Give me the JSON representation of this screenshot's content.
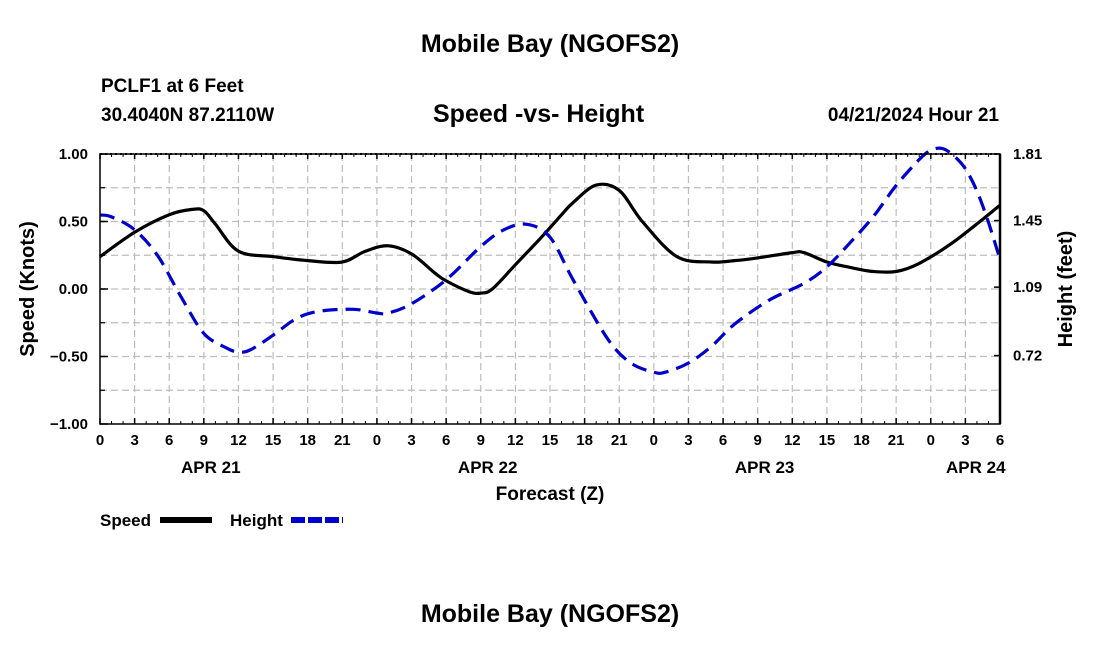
{
  "page_title": "Mobile Bay (NGOFS2)",
  "station": "PCLF1 at 6 Feet",
  "coordinates": "30.4040N  87.2110W",
  "datetime": "04/21/2024 Hour 21",
  "footer_title": "Mobile Bay (NGOFS2)",
  "colors": {
    "speed": "#000000",
    "height": "#0000cc",
    "grid": "#bdbdbd"
  },
  "chart_data": {
    "type": "line",
    "title": "Speed -vs- Height",
    "xlabel": "Forecast (Z)",
    "ylabel": "Speed (Knots)",
    "y2label": "Height (feet)",
    "xlim": [
      0,
      78
    ],
    "ylim": [
      -1.0,
      1.0
    ],
    "y2lim": [
      0.35,
      1.81
    ],
    "x_ticks": [
      0,
      3,
      6,
      9,
      12,
      15,
      18,
      21,
      24,
      27,
      30,
      33,
      36,
      39,
      42,
      45,
      48,
      51,
      54,
      57,
      60,
      63,
      66,
      69,
      72,
      75,
      78
    ],
    "x_tick_labels": [
      "0",
      "3",
      "6",
      "9",
      "12",
      "15",
      "18",
      "21",
      "0",
      "3",
      "6",
      "9",
      "12",
      "15",
      "18",
      "21",
      "0",
      "3",
      "6",
      "9",
      "12",
      "15",
      "18",
      "21",
      "0",
      "3",
      "6"
    ],
    "y_ticks": [
      1.0,
      0.5,
      0.0,
      -0.5,
      -1.0
    ],
    "y_tick_labels": [
      "1.00",
      "0.50",
      "0.00",
      "−0.50",
      "−1.00"
    ],
    "y2_ticks": [
      1.81,
      1.45,
      1.09,
      0.72
    ],
    "y2_tick_labels": [
      "1.81",
      "1.45",
      "1.09",
      "0.72"
    ],
    "date_labels": [
      {
        "x": 9.6,
        "label": "APR 21"
      },
      {
        "x": 33.6,
        "label": "APR 22"
      },
      {
        "x": 57.6,
        "label": "APR 23"
      },
      {
        "x": 75.9,
        "label": "APR 24"
      }
    ],
    "series": [
      {
        "name": "Speed",
        "axis": "left",
        "style": "solid",
        "x": [
          0,
          3,
          6,
          8,
          9,
          10,
          12,
          15,
          18,
          21,
          23,
          25,
          27,
          29,
          30,
          32,
          33,
          34,
          36,
          38,
          40,
          41,
          43,
          45,
          47,
          50,
          53,
          55,
          57,
          60,
          61,
          63,
          65,
          67,
          69,
          71,
          74,
          78
        ],
        "y": [
          0.24,
          0.42,
          0.55,
          0.59,
          0.58,
          0.48,
          0.28,
          0.24,
          0.21,
          0.2,
          0.28,
          0.32,
          0.26,
          0.12,
          0.06,
          -0.02,
          -0.03,
          0.0,
          0.18,
          0.36,
          0.55,
          0.64,
          0.77,
          0.73,
          0.5,
          0.24,
          0.2,
          0.21,
          0.23,
          0.27,
          0.27,
          0.2,
          0.16,
          0.13,
          0.13,
          0.19,
          0.35,
          0.62
        ]
      },
      {
        "name": "Height",
        "axis": "right",
        "style": "dashed",
        "x": [
          0,
          1,
          3,
          5,
          7,
          9,
          11,
          12,
          13,
          15,
          17,
          19,
          22,
          24,
          25,
          27,
          30,
          33,
          35,
          37,
          39,
          41,
          44,
          46,
          48,
          49,
          51,
          53,
          55,
          58,
          61,
          63,
          65,
          67,
          69,
          71,
          72,
          73,
          74,
          75,
          76,
          77,
          78
        ],
        "y": [
          1.48,
          1.47,
          1.4,
          1.26,
          1.04,
          0.84,
          0.76,
          0.74,
          0.75,
          0.83,
          0.92,
          0.96,
          0.97,
          0.95,
          0.95,
          1.0,
          1.13,
          1.31,
          1.4,
          1.43,
          1.36,
          1.13,
          0.81,
          0.68,
          0.63,
          0.63,
          0.68,
          0.77,
          0.89,
          1.02,
          1.11,
          1.2,
          1.33,
          1.47,
          1.64,
          1.78,
          1.83,
          1.84,
          1.8,
          1.73,
          1.61,
          1.44,
          1.24
        ]
      }
    ],
    "legend": [
      {
        "label": "Speed",
        "style": "solid"
      },
      {
        "label": "Height",
        "style": "dashed"
      }
    ]
  }
}
